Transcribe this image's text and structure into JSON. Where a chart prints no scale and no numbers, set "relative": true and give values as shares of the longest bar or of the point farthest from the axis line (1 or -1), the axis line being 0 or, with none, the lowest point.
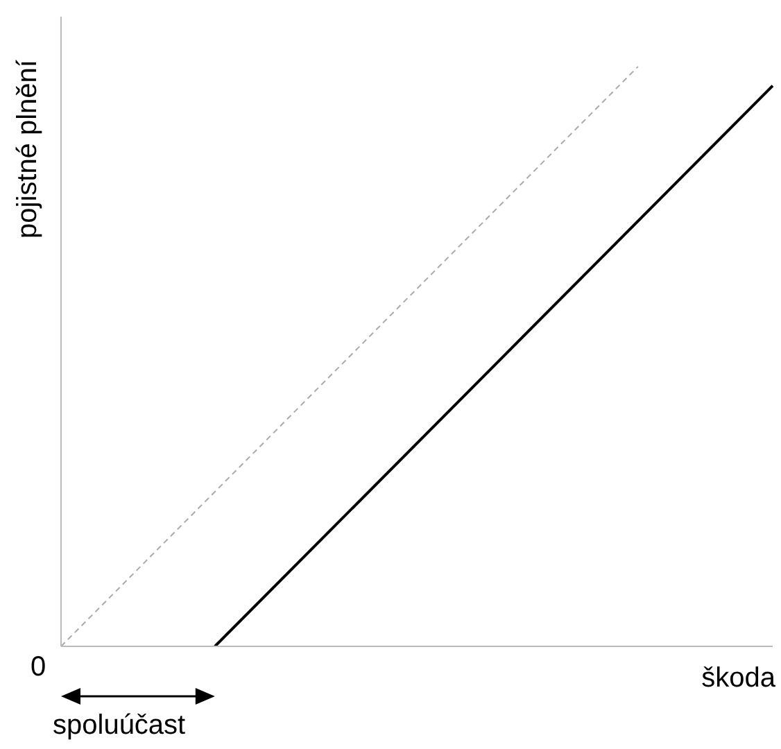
{
  "chart_data": {
    "type": "line",
    "relative": true,
    "xlabel": "škoda",
    "ylabel": "pojistné plnění",
    "marker": "none",
    "annotations": [
      "0",
      "spoluúčast"
    ],
    "categories": [
      null,
      null,
      null,
      null,
      null,
      null,
      null,
      null,
      null,
      null,
      null,
      null,
      null,
      null,
      null,
      null,
      null,
      null,
      null,
      null,
      null,
      null,
      null,
      null,
      null,
      null,
      null,
      null,
      null,
      null,
      null,
      null,
      null,
      null,
      null,
      null,
      null,
      null
    ],
    "series": [
      {
        "color": "#aaaaaa",
        "line_style": "dashed",
        "values": [
          0,
          null,
          null,
          null,
          null,
          null,
          null,
          null,
          null,
          null,
          null,
          null,
          null,
          null,
          null,
          null,
          null,
          null,
          null,
          null,
          null,
          null,
          null,
          null,
          null,
          null,
          null,
          null,
          null,
          null,
          1,
          null,
          null,
          null,
          null,
          null,
          null,
          null
        ]
      },
      {
        "color": "#000000",
        "line_style": "solid",
        "values": [
          null,
          null,
          null,
          null,
          null,
          null,
          null,
          null,
          0,
          null,
          null,
          null,
          null,
          null,
          null,
          null,
          null,
          null,
          null,
          null,
          null,
          null,
          null,
          null,
          null,
          null,
          null,
          null,
          null,
          null,
          null,
          null,
          null,
          null,
          null,
          null,
          null,
          0.967
        ]
      }
    ]
  }
}
